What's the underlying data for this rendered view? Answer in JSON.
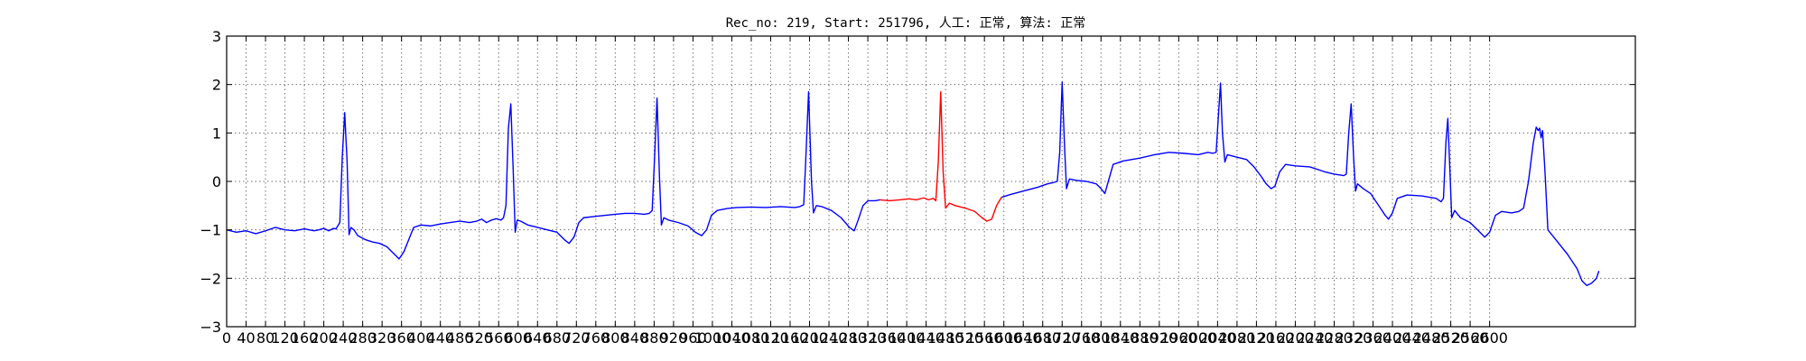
{
  "chart_data": {
    "type": "line",
    "title": "Rec_no: 219, Start: 251796, 人工: 正常, 算法: 正常",
    "xlabel": "",
    "ylabel": "",
    "xlim": [
      0,
      2900
    ],
    "ylim": [
      -3,
      3
    ],
    "grid": true,
    "x_ticks": [
      0,
      40,
      80,
      120,
      160,
      200,
      240,
      280,
      320,
      360,
      400,
      440,
      480,
      520,
      560,
      600,
      640,
      680,
      720,
      760,
      800,
      840,
      880,
      920,
      960,
      1000,
      1040,
      1080,
      1120,
      1160,
      1200,
      1240,
      1280,
      1320,
      1360,
      1400,
      1440,
      1480,
      1520,
      1560,
      1600,
      1640,
      1680,
      1720,
      1760,
      1800,
      1840,
      1880,
      1920,
      1960,
      2000,
      2040,
      2080,
      2120,
      2160,
      2200,
      2240,
      2280,
      2320,
      2360,
      2400,
      2440,
      2480,
      2520,
      2560,
      2600
    ],
    "y_ticks": [
      -3,
      -2,
      -1,
      0,
      1,
      2,
      3
    ],
    "colors": {
      "normal": "#0000ff",
      "highlight": "#ff0000"
    },
    "series": [
      {
        "color": "#0000ff",
        "points": [
          [
            0,
            -1.0
          ],
          [
            20,
            -1.05
          ],
          [
            40,
            -1.02
          ],
          [
            60,
            -1.08
          ],
          [
            80,
            -1.02
          ],
          [
            100,
            -0.95
          ],
          [
            120,
            -1.0
          ],
          [
            140,
            -1.02
          ],
          [
            160,
            -0.98
          ],
          [
            170,
            -1.0
          ],
          [
            180,
            -1.02
          ],
          [
            190,
            -1.0
          ],
          [
            200,
            -0.97
          ],
          [
            210,
            -1.02
          ],
          [
            220,
            -0.97
          ],
          [
            225,
            -0.98
          ],
          [
            233,
            -0.85
          ],
          [
            238,
            0.5
          ],
          [
            243,
            1.42
          ],
          [
            248,
            0.4
          ],
          [
            252,
            -1.1
          ],
          [
            256,
            -0.95
          ],
          [
            262,
            -1.0
          ],
          [
            270,
            -1.12
          ],
          [
            285,
            -1.2
          ],
          [
            300,
            -1.25
          ],
          [
            315,
            -1.28
          ],
          [
            330,
            -1.35
          ],
          [
            345,
            -1.5
          ],
          [
            355,
            -1.6
          ],
          [
            365,
            -1.45
          ],
          [
            375,
            -1.2
          ],
          [
            385,
            -0.95
          ],
          [
            400,
            -0.9
          ],
          [
            420,
            -0.92
          ],
          [
            440,
            -0.88
          ],
          [
            460,
            -0.85
          ],
          [
            480,
            -0.82
          ],
          [
            500,
            -0.85
          ],
          [
            515,
            -0.82
          ],
          [
            525,
            -0.78
          ],
          [
            535,
            -0.85
          ],
          [
            545,
            -0.8
          ],
          [
            555,
            -0.77
          ],
          [
            565,
            -0.8
          ],
          [
            570,
            -0.75
          ],
          [
            575,
            -0.5
          ],
          [
            580,
            1.1
          ],
          [
            585,
            1.6
          ],
          [
            590,
            0.2
          ],
          [
            594,
            -1.05
          ],
          [
            598,
            -0.8
          ],
          [
            605,
            -0.82
          ],
          [
            620,
            -0.9
          ],
          [
            640,
            -0.95
          ],
          [
            660,
            -1.0
          ],
          [
            680,
            -1.05
          ],
          [
            695,
            -1.2
          ],
          [
            705,
            -1.28
          ],
          [
            715,
            -1.15
          ],
          [
            725,
            -0.85
          ],
          [
            735,
            -0.75
          ],
          [
            760,
            -0.72
          ],
          [
            780,
            -0.7
          ],
          [
            800,
            -0.68
          ],
          [
            820,
            -0.66
          ],
          [
            840,
            -0.66
          ],
          [
            860,
            -0.68
          ],
          [
            870,
            -0.66
          ],
          [
            876,
            -0.6
          ],
          [
            881,
            0.5
          ],
          [
            886,
            1.72
          ],
          [
            891,
            0.1
          ],
          [
            895,
            -0.9
          ],
          [
            900,
            -0.75
          ],
          [
            910,
            -0.8
          ],
          [
            930,
            -0.85
          ],
          [
            950,
            -0.92
          ],
          [
            965,
            -1.05
          ],
          [
            978,
            -1.12
          ],
          [
            988,
            -1.0
          ],
          [
            998,
            -0.7
          ],
          [
            1010,
            -0.6
          ],
          [
            1030,
            -0.56
          ],
          [
            1050,
            -0.54
          ],
          [
            1080,
            -0.53
          ],
          [
            1110,
            -0.54
          ],
          [
            1140,
            -0.52
          ],
          [
            1170,
            -0.54
          ],
          [
            1180,
            -0.52
          ],
          [
            1188,
            -0.48
          ],
          [
            1192,
            0.4
          ],
          [
            1198,
            1.85
          ],
          [
            1204,
            0.0
          ],
          [
            1208,
            -0.65
          ],
          [
            1214,
            -0.5
          ],
          [
            1225,
            -0.52
          ],
          [
            1245,
            -0.6
          ],
          [
            1265,
            -0.75
          ],
          [
            1282,
            -0.95
          ],
          [
            1292,
            -1.02
          ],
          [
            1300,
            -0.8
          ],
          [
            1310,
            -0.5
          ],
          [
            1320,
            -0.4
          ],
          [
            1335,
            -0.4
          ],
          [
            1345,
            -0.38
          ]
        ]
      },
      {
        "color": "#ff0000",
        "points": [
          [
            1345,
            -0.38
          ],
          [
            1365,
            -0.4
          ],
          [
            1385,
            -0.38
          ],
          [
            1405,
            -0.36
          ],
          [
            1420,
            -0.38
          ],
          [
            1435,
            -0.34
          ],
          [
            1445,
            -0.38
          ],
          [
            1455,
            -0.35
          ],
          [
            1460,
            -0.4
          ],
          [
            1465,
            0.4
          ],
          [
            1470,
            1.85
          ],
          [
            1475,
            0.2
          ],
          [
            1480,
            -0.55
          ],
          [
            1488,
            -0.45
          ],
          [
            1500,
            -0.5
          ],
          [
            1520,
            -0.55
          ],
          [
            1540,
            -0.62
          ],
          [
            1555,
            -0.75
          ],
          [
            1565,
            -0.82
          ],
          [
            1575,
            -0.78
          ],
          [
            1585,
            -0.5
          ],
          [
            1595,
            -0.33
          ]
        ]
      },
      {
        "color": "#0000ff",
        "points": [
          [
            1595,
            -0.33
          ],
          [
            1610,
            -0.28
          ],
          [
            1640,
            -0.2
          ],
          [
            1670,
            -0.12
          ],
          [
            1690,
            -0.05
          ],
          [
            1700,
            -0.03
          ],
          [
            1710,
            0.0
          ],
          [
            1715,
            0.6
          ],
          [
            1720,
            2.05
          ],
          [
            1725,
            0.7
          ],
          [
            1729,
            -0.15
          ],
          [
            1735,
            0.05
          ],
          [
            1750,
            0.02
          ],
          [
            1770,
            0.0
          ],
          [
            1790,
            -0.05
          ],
          [
            1800,
            -0.15
          ],
          [
            1808,
            -0.25
          ],
          [
            1815,
            0.0
          ],
          [
            1825,
            0.35
          ],
          [
            1845,
            0.42
          ],
          [
            1880,
            0.48
          ],
          [
            1910,
            0.55
          ],
          [
            1940,
            0.6
          ],
          [
            1970,
            0.58
          ],
          [
            2000,
            0.55
          ],
          [
            2020,
            0.6
          ],
          [
            2030,
            0.58
          ],
          [
            2037,
            0.6
          ],
          [
            2042,
            1.4
          ],
          [
            2046,
            2.03
          ],
          [
            2050,
            1.0
          ],
          [
            2055,
            0.4
          ],
          [
            2060,
            0.55
          ],
          [
            2080,
            0.5
          ],
          [
            2100,
            0.45
          ],
          [
            2115,
            0.3
          ],
          [
            2130,
            0.1
          ],
          [
            2140,
            -0.05
          ],
          [
            2150,
            -0.15
          ],
          [
            2158,
            -0.1
          ],
          [
            2168,
            0.2
          ],
          [
            2180,
            0.35
          ],
          [
            2200,
            0.32
          ],
          [
            2230,
            0.3
          ],
          [
            2260,
            0.2
          ],
          [
            2280,
            0.15
          ],
          [
            2300,
            0.12
          ],
          [
            2305,
            0.15
          ],
          [
            2310,
            1.0
          ],
          [
            2315,
            1.6
          ],
          [
            2320,
            0.5
          ],
          [
            2324,
            -0.2
          ],
          [
            2328,
            -0.05
          ],
          [
            2340,
            -0.15
          ],
          [
            2355,
            -0.25
          ],
          [
            2365,
            -0.4
          ],
          [
            2375,
            -0.55
          ],
          [
            2385,
            -0.7
          ],
          [
            2392,
            -0.78
          ],
          [
            2400,
            -0.65
          ],
          [
            2410,
            -0.35
          ],
          [
            2430,
            -0.28
          ],
          [
            2460,
            -0.3
          ],
          [
            2490,
            -0.35
          ],
          [
            2500,
            -0.42
          ],
          [
            2505,
            -0.35
          ],
          [
            2510,
            0.8
          ],
          [
            2514,
            1.3
          ],
          [
            2518,
            0.3
          ],
          [
            2522,
            -0.75
          ],
          [
            2528,
            -0.6
          ],
          [
            2540,
            -0.75
          ],
          [
            2560,
            -0.85
          ],
          [
            2575,
            -1.0
          ],
          [
            2590,
            -1.15
          ],
          [
            2600,
            -1.05
          ],
          [
            2612,
            -0.7
          ],
          [
            2625,
            -0.62
          ],
          [
            2645,
            -0.65
          ],
          [
            2660,
            -0.62
          ],
          [
            2670,
            -0.55
          ],
          [
            2680,
            0.0
          ],
          [
            2690,
            0.8
          ],
          [
            2696,
            1.12
          ],
          [
            2700,
            1.05
          ],
          [
            2703,
            1.1
          ],
          [
            2706,
            0.9
          ],
          [
            2709,
            1.05
          ],
          [
            2714,
            0.2
          ],
          [
            2720,
            -1.0
          ],
          [
            2740,
            -1.25
          ],
          [
            2760,
            -1.5
          ],
          [
            2780,
            -1.8
          ],
          [
            2790,
            -2.05
          ],
          [
            2800,
            -2.15
          ],
          [
            2810,
            -2.1
          ],
          [
            2820,
            -2.0
          ],
          [
            2825,
            -1.85
          ]
        ]
      }
    ]
  }
}
